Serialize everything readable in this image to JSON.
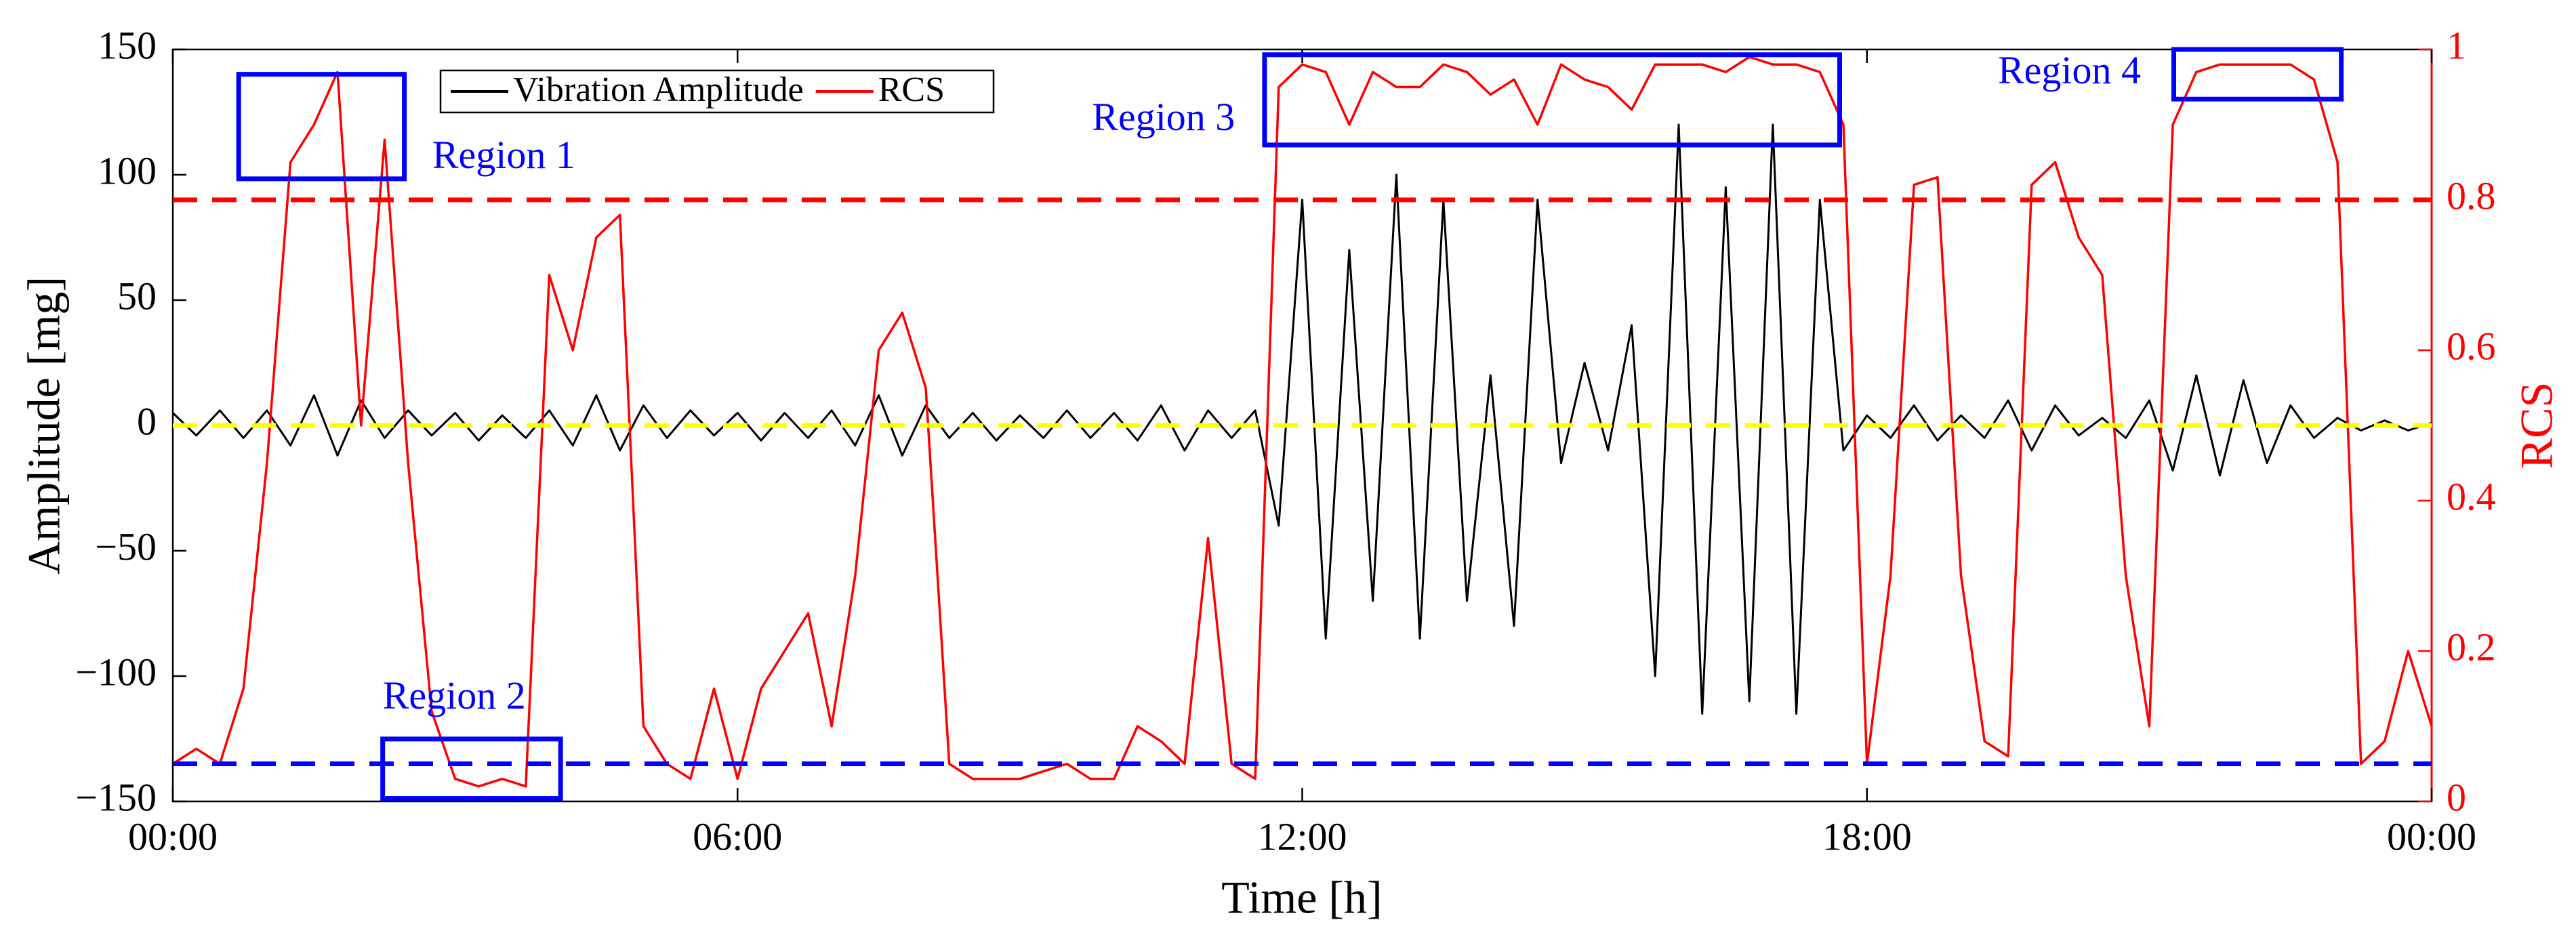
{
  "chart_data": {
    "type": "line",
    "x_label": "Time [h]",
    "y_label": "Amplitude [mg]",
    "y2_label": "RCS",
    "xlim": [
      0,
      24
    ],
    "xticks": [
      {
        "value": 0,
        "label": "00:00"
      },
      {
        "value": 6,
        "label": "06:00"
      },
      {
        "value": 12,
        "label": "12:00"
      },
      {
        "value": 18,
        "label": "18:00"
      },
      {
        "value": 24,
        "label": "00:00"
      }
    ],
    "ylim": [
      -150,
      150
    ],
    "yticks": [
      {
        "value": -150,
        "label": "−150"
      },
      {
        "value": -100,
        "label": "−100"
      },
      {
        "value": -50,
        "label": "−50"
      },
      0,
      50,
      100,
      150
    ],
    "y2lim": [
      0,
      1
    ],
    "y2ticks": [
      0,
      0.2,
      0.4,
      0.6,
      0.8,
      1
    ],
    "y2_color": "#ff0000",
    "legend": "top-left",
    "x": [
      0,
      0.25,
      0.5,
      0.75,
      1,
      1.25,
      1.5,
      1.75,
      2,
      2.25,
      2.5,
      2.75,
      3,
      3.25,
      3.5,
      3.75,
      4,
      4.25,
      4.5,
      4.75,
      5,
      5.25,
      5.5,
      5.75,
      6,
      6.25,
      6.5,
      6.75,
      7,
      7.25,
      7.5,
      7.75,
      8,
      8.25,
      8.5,
      8.75,
      9,
      9.25,
      9.5,
      9.75,
      10,
      10.25,
      10.5,
      10.75,
      11,
      11.25,
      11.5,
      11.75,
      12,
      12.25,
      12.5,
      12.75,
      13,
      13.25,
      13.5,
      13.75,
      14,
      14.25,
      14.5,
      14.75,
      15,
      15.25,
      15.5,
      15.75,
      16,
      16.25,
      16.5,
      16.75,
      17,
      17.25,
      17.5,
      17.75,
      18,
      18.25,
      18.5,
      18.75,
      19,
      19.25,
      19.5,
      19.75,
      20,
      20.25,
      20.5,
      20.75,
      21,
      21.25,
      21.5,
      21.75,
      22,
      22.25,
      22.5,
      22.75,
      23,
      23.25,
      23.5,
      23.75,
      24
    ],
    "series": [
      {
        "name": "Vibration Amplitude",
        "color": "#000000",
        "axis": "y",
        "values": [
          5,
          -4,
          6,
          -5,
          6,
          -8,
          12,
          -12,
          10,
          -5,
          6,
          -4,
          5,
          -6,
          4,
          -5,
          6,
          -8,
          12,
          -10,
          8,
          -5,
          6,
          -4,
          5,
          -6,
          5,
          -5,
          6,
          -8,
          12,
          -12,
          8,
          -5,
          5,
          -6,
          4,
          -5,
          6,
          -5,
          5,
          -6,
          8,
          -10,
          6,
          -5,
          6,
          -40,
          90,
          -85,
          70,
          -70,
          100,
          -85,
          90,
          -70,
          20,
          -80,
          90,
          -15,
          25,
          -10,
          40,
          -100,
          120,
          -115,
          95,
          -110,
          120,
          -115,
          90,
          -10,
          4,
          -5,
          8,
          -6,
          4,
          -5,
          10,
          -10,
          8,
          -4,
          3,
          -5,
          10,
          -18,
          20,
          -20,
          18,
          -15,
          8,
          -5,
          3,
          -2,
          2,
          -2,
          1
        ]
      },
      {
        "name": "RCS",
        "color": "#ff0000",
        "axis": "y2",
        "values": [
          0.05,
          0.07,
          0.05,
          0.15,
          0.45,
          0.85,
          0.9,
          0.97,
          0.5,
          0.88,
          0.45,
          0.12,
          0.03,
          0.02,
          0.03,
          0.02,
          0.7,
          0.6,
          0.75,
          0.78,
          0.1,
          0.05,
          0.03,
          0.15,
          0.03,
          0.15,
          0.2,
          0.25,
          0.1,
          0.3,
          0.6,
          0.65,
          0.55,
          0.05,
          0.03,
          0.03,
          0.03,
          0.04,
          0.05,
          0.03,
          0.03,
          0.1,
          0.08,
          0.05,
          0.35,
          0.05,
          0.03,
          0.95,
          0.98,
          0.97,
          0.9,
          0.97,
          0.95,
          0.95,
          0.98,
          0.97,
          0.94,
          0.96,
          0.9,
          0.98,
          0.96,
          0.95,
          0.92,
          0.98,
          0.98,
          0.98,
          0.97,
          0.99,
          0.98,
          0.98,
          0.97,
          0.9,
          0.05,
          0.3,
          0.82,
          0.83,
          0.3,
          0.08,
          0.06,
          0.82,
          0.85,
          0.75,
          0.7,
          0.3,
          0.1,
          0.9,
          0.97,
          0.98,
          0.98,
          0.98,
          0.98,
          0.96,
          0.85,
          0.05,
          0.08,
          0.2,
          0.1
        ]
      }
    ],
    "reference_lines": [
      {
        "axis": "y2",
        "value": 0.8,
        "color": "#ff0000"
      },
      {
        "axis": "y",
        "value": 0,
        "color": "#ffff00"
      },
      {
        "axis": "y2",
        "value": 0.05,
        "color": "#0000ff"
      }
    ],
    "regions": [
      {
        "label": "Region 1",
        "color": "#0000ff",
        "x": [
          0.7,
          2.46
        ],
        "y2": [
          0.828,
          0.967
        ]
      },
      {
        "label": "Region 2",
        "color": "#0000ff",
        "x": [
          2.23,
          4.12
        ],
        "y2": [
          0.004,
          0.083
        ]
      },
      {
        "label": "Region 3",
        "color": "#0000ff",
        "x": [
          11.6,
          17.71
        ],
        "y2": [
          0.873,
          0.993
        ]
      },
      {
        "label": "Region 4",
        "color": "#0000ff",
        "x": [
          21.26,
          23.04
        ],
        "y2": [
          0.934,
          1
        ]
      }
    ]
  }
}
